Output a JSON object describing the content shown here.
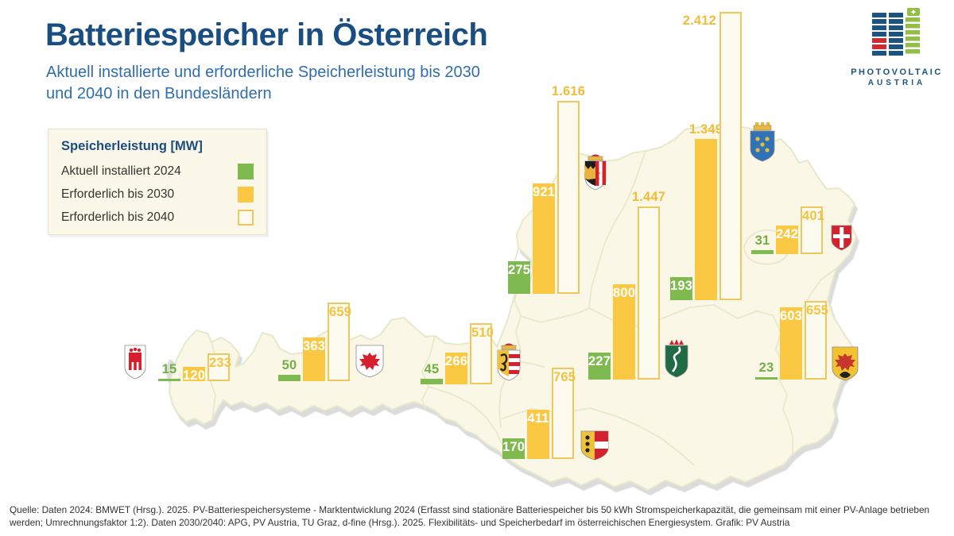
{
  "header": {
    "title": "Batteriespeicher in Österreich",
    "subtitle": "Aktuell installierte und erforderliche Speicherleistung bis 2030\nund 2040 in den Bundesländern"
  },
  "logo": {
    "line1": "PHOTOVOLTAIC",
    "line2": "AUSTRIA"
  },
  "legend": {
    "title": "Speicherleistung [MW]",
    "items": [
      {
        "label": "Aktuell installiert 2024"
      },
      {
        "label": "Erforderlich bis 2030"
      },
      {
        "label": "Erforderlich bis 2040"
      }
    ]
  },
  "chart_data": {
    "type": "bar",
    "title": "Batteriespeicher in Österreich",
    "unit": "MW",
    "map": "Austria with federal states",
    "series": [
      {
        "id": "installed_2024",
        "name": "Aktuell installiert 2024",
        "color": "#7FBA50"
      },
      {
        "id": "required_2030",
        "name": "Erforderlich bis 2030",
        "color": "#FAC843"
      },
      {
        "id": "required_2040",
        "name": "Erforderlich bis 2040",
        "color": "#FDFBEF",
        "border_color": "#F0C75C"
      }
    ],
    "states": [
      {
        "id": "vorarlberg",
        "name": "Vorarlberg",
        "values": [
          15,
          120,
          233
        ],
        "display": [
          "15",
          "120",
          "233"
        ]
      },
      {
        "id": "tirol",
        "name": "Tirol",
        "values": [
          50,
          363,
          659
        ],
        "display": [
          "50",
          "363",
          "659"
        ]
      },
      {
        "id": "salzburg",
        "name": "Salzburg",
        "values": [
          45,
          266,
          510
        ],
        "display": [
          "45",
          "266",
          "510"
        ]
      },
      {
        "id": "oberoesterreich",
        "name": "Oberösterreich",
        "values": [
          275,
          921,
          1616
        ],
        "display": [
          "275",
          "921",
          "1.616"
        ]
      },
      {
        "id": "kaernten",
        "name": "Kärnten",
        "values": [
          170,
          411,
          765
        ],
        "display": [
          "170",
          "411",
          "765"
        ]
      },
      {
        "id": "steiermark",
        "name": "Steiermark",
        "values": [
          227,
          800,
          1447
        ],
        "display": [
          "227",
          "800",
          "1.447"
        ]
      },
      {
        "id": "niederoesterreich",
        "name": "Niederösterreich",
        "values": [
          193,
          1349,
          2412
        ],
        "display": [
          "193",
          "1.349",
          "2.412"
        ]
      },
      {
        "id": "wien",
        "name": "Wien",
        "values": [
          31,
          242,
          401
        ],
        "display": [
          "31",
          "242",
          "401"
        ]
      },
      {
        "id": "burgenland",
        "name": "Burgenland",
        "values": [
          23,
          603,
          655
        ],
        "display": [
          "23",
          "603",
          "655"
        ]
      }
    ]
  },
  "footer": {
    "source": "Quelle: Daten 2024: BMWET (Hrsg.). 2025. PV-Batteriespeichersysteme - Marktentwicklung 2024 (Erfasst sind stationäre Batteriespeicher bis 50 kWh Stromspeicherkapazität, die gemeinsam mit einer PV-Anlage betrieben werden; Umrechnungsfaktor 1:2). Daten 2030/2040: APG, PV Austria, TU Graz, d-fine (Hrsg.). 2025. Flexibilitäts- und Speicherbedarf im österreichischen Energiesystem. Grafik: PV Austria"
  }
}
